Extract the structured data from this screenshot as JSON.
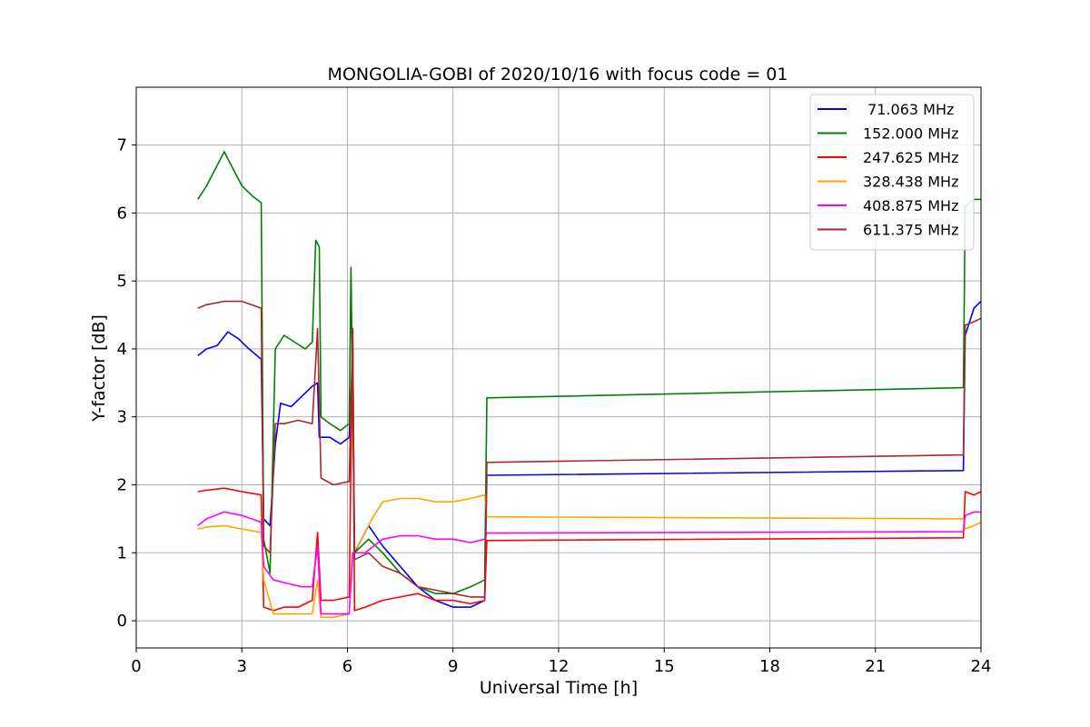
{
  "chart_data": {
    "type": "line",
    "title": "MONGOLIA-GOBI of 2020/10/16 with focus code = 01",
    "xlabel": "Universal Time [h]",
    "ylabel": "Y-factor [dB]",
    "xlim": [
      0,
      24
    ],
    "ylim": [
      -0.4,
      7.85
    ],
    "xticks": [
      0,
      3,
      6,
      9,
      12,
      15,
      18,
      21,
      24
    ],
    "yticks": [
      0,
      1,
      2,
      3,
      4,
      5,
      6,
      7
    ],
    "grid": true,
    "legend_position": "top-right",
    "series": [
      {
        "name": " 71.063 MHz",
        "color": "#0000ff",
        "points": [
          [
            1.75,
            3.9
          ],
          [
            2.0,
            4.0
          ],
          [
            2.3,
            4.05
          ],
          [
            2.6,
            4.25
          ],
          [
            2.9,
            4.15
          ],
          [
            3.2,
            4.0
          ],
          [
            3.55,
            3.85
          ],
          [
            3.62,
            1.5
          ],
          [
            3.8,
            1.4
          ],
          [
            3.95,
            2.6
          ],
          [
            4.1,
            3.2
          ],
          [
            4.4,
            3.15
          ],
          [
            4.7,
            3.3
          ],
          [
            5.0,
            3.45
          ],
          [
            5.15,
            3.5
          ],
          [
            5.2,
            2.7
          ],
          [
            5.5,
            2.7
          ],
          [
            5.8,
            2.6
          ],
          [
            6.05,
            2.7
          ],
          [
            6.15,
            3.9
          ],
          [
            6.2,
            1.0
          ],
          [
            6.6,
            1.4
          ],
          [
            7.0,
            1.1
          ],
          [
            7.5,
            0.8
          ],
          [
            8.0,
            0.5
          ],
          [
            8.5,
            0.3
          ],
          [
            9.0,
            0.2
          ],
          [
            9.5,
            0.2
          ],
          [
            9.9,
            0.3
          ],
          [
            9.96,
            2.14
          ],
          [
            23.5,
            2.21
          ],
          [
            23.55,
            4.2
          ],
          [
            23.8,
            4.6
          ],
          [
            24.0,
            4.7
          ]
        ]
      },
      {
        "name": "152.000 MHz",
        "color": "#008000",
        "points": [
          [
            1.75,
            6.2
          ],
          [
            2.0,
            6.4
          ],
          [
            2.3,
            6.7
          ],
          [
            2.5,
            6.9
          ],
          [
            2.7,
            6.7
          ],
          [
            3.0,
            6.4
          ],
          [
            3.3,
            6.25
          ],
          [
            3.55,
            6.15
          ],
          [
            3.62,
            1.2
          ],
          [
            3.8,
            0.7
          ],
          [
            3.95,
            4.0
          ],
          [
            4.2,
            4.2
          ],
          [
            4.5,
            4.1
          ],
          [
            4.8,
            4.0
          ],
          [
            5.0,
            4.1
          ],
          [
            5.1,
            5.6
          ],
          [
            5.2,
            5.5
          ],
          [
            5.25,
            3.0
          ],
          [
            5.5,
            2.9
          ],
          [
            5.8,
            2.8
          ],
          [
            6.05,
            2.9
          ],
          [
            6.1,
            5.2
          ],
          [
            6.2,
            1.0
          ],
          [
            6.6,
            1.2
          ],
          [
            7.0,
            1.0
          ],
          [
            7.5,
            0.7
          ],
          [
            8.0,
            0.5
          ],
          [
            8.5,
            0.4
          ],
          [
            9.0,
            0.4
          ],
          [
            9.5,
            0.5
          ],
          [
            9.9,
            0.6
          ],
          [
            9.96,
            3.28
          ],
          [
            23.5,
            3.43
          ],
          [
            23.55,
            6.1
          ],
          [
            23.8,
            6.2
          ],
          [
            24.0,
            6.2
          ]
        ]
      },
      {
        "name": "247.625 MHz",
        "color": "#ff0000",
        "points": [
          [
            1.75,
            1.9
          ],
          [
            2.0,
            1.92
          ],
          [
            2.5,
            1.95
          ],
          [
            3.0,
            1.9
          ],
          [
            3.55,
            1.85
          ],
          [
            3.62,
            0.2
          ],
          [
            3.9,
            0.15
          ],
          [
            4.2,
            0.2
          ],
          [
            4.6,
            0.2
          ],
          [
            5.0,
            0.3
          ],
          [
            5.15,
            1.3
          ],
          [
            5.25,
            0.3
          ],
          [
            5.6,
            0.3
          ],
          [
            6.05,
            0.35
          ],
          [
            6.15,
            4.3
          ],
          [
            6.2,
            0.15
          ],
          [
            6.5,
            0.2
          ],
          [
            7.0,
            0.3
          ],
          [
            7.5,
            0.35
          ],
          [
            8.0,
            0.4
          ],
          [
            8.5,
            0.3
          ],
          [
            9.0,
            0.3
          ],
          [
            9.5,
            0.25
          ],
          [
            9.9,
            0.3
          ],
          [
            9.96,
            1.18
          ],
          [
            23.5,
            1.22
          ],
          [
            23.55,
            1.9
          ],
          [
            23.8,
            1.85
          ],
          [
            24.0,
            1.9
          ]
        ]
      },
      {
        "name": "328.438 MHz",
        "color": "#ffa500",
        "points": [
          [
            1.75,
            1.35
          ],
          [
            2.0,
            1.38
          ],
          [
            2.5,
            1.4
          ],
          [
            3.0,
            1.35
          ],
          [
            3.55,
            1.3
          ],
          [
            3.62,
            0.6
          ],
          [
            3.9,
            0.1
          ],
          [
            4.3,
            0.1
          ],
          [
            4.8,
            0.1
          ],
          [
            5.0,
            0.1
          ],
          [
            5.15,
            0.6
          ],
          [
            5.25,
            0.05
          ],
          [
            5.6,
            0.05
          ],
          [
            6.05,
            0.1
          ],
          [
            6.15,
            1.0
          ],
          [
            6.3,
            1.1
          ],
          [
            6.7,
            1.5
          ],
          [
            7.0,
            1.75
          ],
          [
            7.5,
            1.8
          ],
          [
            8.0,
            1.8
          ],
          [
            8.5,
            1.75
          ],
          [
            9.0,
            1.75
          ],
          [
            9.5,
            1.8
          ],
          [
            9.9,
            1.85
          ],
          [
            9.96,
            1.53
          ],
          [
            23.5,
            1.5
          ],
          [
            23.55,
            1.35
          ],
          [
            23.8,
            1.4
          ],
          [
            24.0,
            1.45
          ]
        ]
      },
      {
        "name": "408.875 MHz",
        "color": "#ff00ff",
        "points": [
          [
            1.75,
            1.4
          ],
          [
            2.0,
            1.5
          ],
          [
            2.5,
            1.6
          ],
          [
            3.0,
            1.55
          ],
          [
            3.55,
            1.45
          ],
          [
            3.62,
            0.8
          ],
          [
            3.9,
            0.6
          ],
          [
            4.3,
            0.55
          ],
          [
            4.7,
            0.5
          ],
          [
            5.0,
            0.5
          ],
          [
            5.15,
            1.1
          ],
          [
            5.25,
            0.1
          ],
          [
            5.6,
            0.1
          ],
          [
            6.05,
            0.1
          ],
          [
            6.15,
            1.0
          ],
          [
            6.5,
            1.0
          ],
          [
            7.0,
            1.2
          ],
          [
            7.5,
            1.25
          ],
          [
            8.0,
            1.25
          ],
          [
            8.5,
            1.2
          ],
          [
            9.0,
            1.2
          ],
          [
            9.5,
            1.15
          ],
          [
            9.9,
            1.2
          ],
          [
            9.96,
            1.29
          ],
          [
            23.5,
            1.31
          ],
          [
            23.55,
            1.55
          ],
          [
            23.8,
            1.6
          ],
          [
            24.0,
            1.6
          ]
        ]
      },
      {
        "name": "611.375 MHz",
        "color": "#a52a2a",
        "points": [
          [
            1.75,
            4.6
          ],
          [
            2.0,
            4.65
          ],
          [
            2.5,
            4.7
          ],
          [
            3.0,
            4.7
          ],
          [
            3.55,
            4.6
          ],
          [
            3.62,
            1.1
          ],
          [
            3.8,
            1.0
          ],
          [
            3.95,
            2.9
          ],
          [
            4.2,
            2.9
          ],
          [
            4.6,
            2.95
          ],
          [
            5.0,
            2.9
          ],
          [
            5.15,
            4.3
          ],
          [
            5.25,
            2.1
          ],
          [
            5.6,
            2.0
          ],
          [
            6.05,
            2.05
          ],
          [
            6.15,
            4.3
          ],
          [
            6.2,
            0.9
          ],
          [
            6.6,
            1.0
          ],
          [
            7.0,
            0.8
          ],
          [
            7.5,
            0.7
          ],
          [
            8.0,
            0.5
          ],
          [
            8.5,
            0.45
          ],
          [
            9.0,
            0.4
          ],
          [
            9.5,
            0.35
          ],
          [
            9.9,
            0.35
          ],
          [
            9.96,
            2.33
          ],
          [
            23.5,
            2.44
          ],
          [
            23.55,
            4.35
          ],
          [
            23.8,
            4.4
          ],
          [
            24.0,
            4.45
          ]
        ]
      }
    ]
  }
}
